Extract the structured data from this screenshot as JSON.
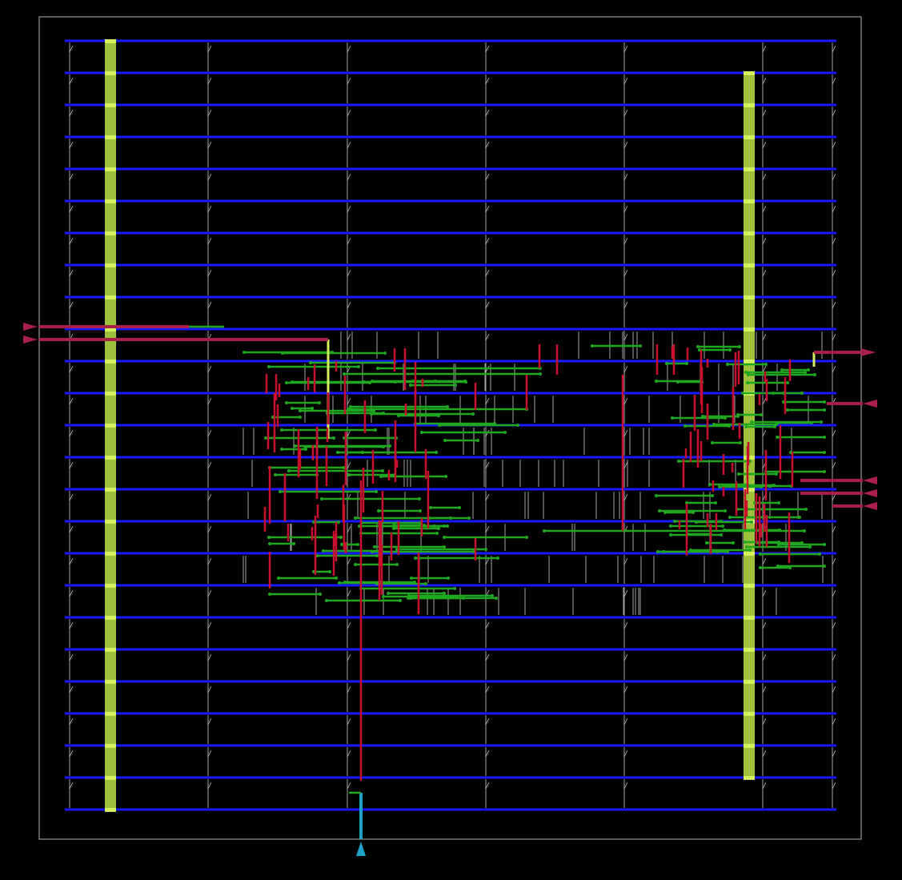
{
  "view": {
    "kind": "chip-layout-view",
    "background": "#000000"
  },
  "colors": {
    "die_boundary": "#9a9a9a",
    "power_rail": "#1a1aff",
    "power_stripe": "#9dc13a",
    "power_stripe_via": "#d4f05c",
    "metal_horizontal": "#1fa81f",
    "metal_vertical": "#c8102e",
    "pin": "#a8204a",
    "clock_pin": "#1fa3c9",
    "cell_outline": "#cfcfcf"
  },
  "layers": [
    {
      "name": "die-boundary",
      "color_key": "die_boundary"
    },
    {
      "name": "power-rails",
      "color_key": "power_rail",
      "count": 25
    },
    {
      "name": "power-stripes",
      "color_key": "power_stripe",
      "count": 2
    },
    {
      "name": "standard-cells",
      "color_key": "cell_outline"
    },
    {
      "name": "routing-horizontal",
      "color_key": "metal_horizontal"
    },
    {
      "name": "routing-vertical",
      "color_key": "metal_vertical"
    },
    {
      "name": "io-pins",
      "color_key": "pin"
    }
  ],
  "io_pins": [
    {
      "name": "pin-west-1",
      "side": "west",
      "direction": "in"
    },
    {
      "name": "pin-west-2",
      "side": "west",
      "direction": "in"
    },
    {
      "name": "pin-east-1",
      "side": "east",
      "direction": "out"
    },
    {
      "name": "pin-east-2",
      "side": "east",
      "direction": "in"
    },
    {
      "name": "pin-east-3",
      "side": "east",
      "direction": "in"
    },
    {
      "name": "pin-east-4",
      "side": "east",
      "direction": "in"
    },
    {
      "name": "pin-east-5",
      "side": "east",
      "direction": "in"
    },
    {
      "name": "pin-south-clock",
      "side": "south",
      "direction": "in"
    }
  ]
}
